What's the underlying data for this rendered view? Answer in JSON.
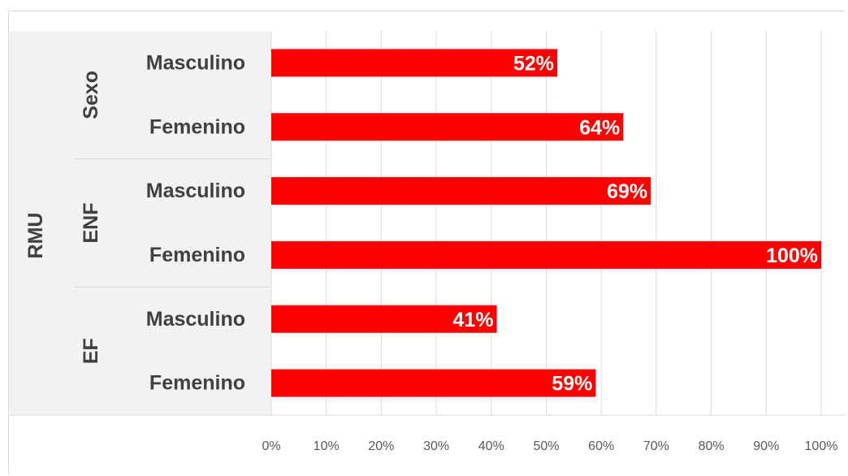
{
  "colors": {
    "bar": "#ff0000",
    "label_panel": "#f2f2f2",
    "gridline": "#d9d9d9",
    "text": "#404040",
    "data_label": "#ffffff"
  },
  "chart_data": {
    "type": "bar",
    "orientation": "horizontal",
    "outer_label": "RMU",
    "groups": [
      {
        "name": "Sexo",
        "categories": [
          "Masculino",
          "Femenino"
        ],
        "values": [
          52,
          64
        ],
        "labels": [
          "52%",
          "64%"
        ]
      },
      {
        "name": "ENF",
        "categories": [
          "Masculino",
          "Femenino"
        ],
        "values": [
          69,
          100
        ],
        "labels": [
          "69%",
          "100%"
        ]
      },
      {
        "name": "EF",
        "categories": [
          "Masculino",
          "Femenino"
        ],
        "values": [
          41,
          59
        ],
        "labels": [
          "41%",
          "59%"
        ]
      }
    ],
    "xlim": [
      0,
      100
    ],
    "x_ticks": [
      "0%",
      "10%",
      "20%",
      "30%",
      "40%",
      "50%",
      "60%",
      "70%",
      "80%",
      "90%",
      "100%"
    ],
    "grid": true,
    "title": "",
    "xlabel": "",
    "ylabel": ""
  }
}
